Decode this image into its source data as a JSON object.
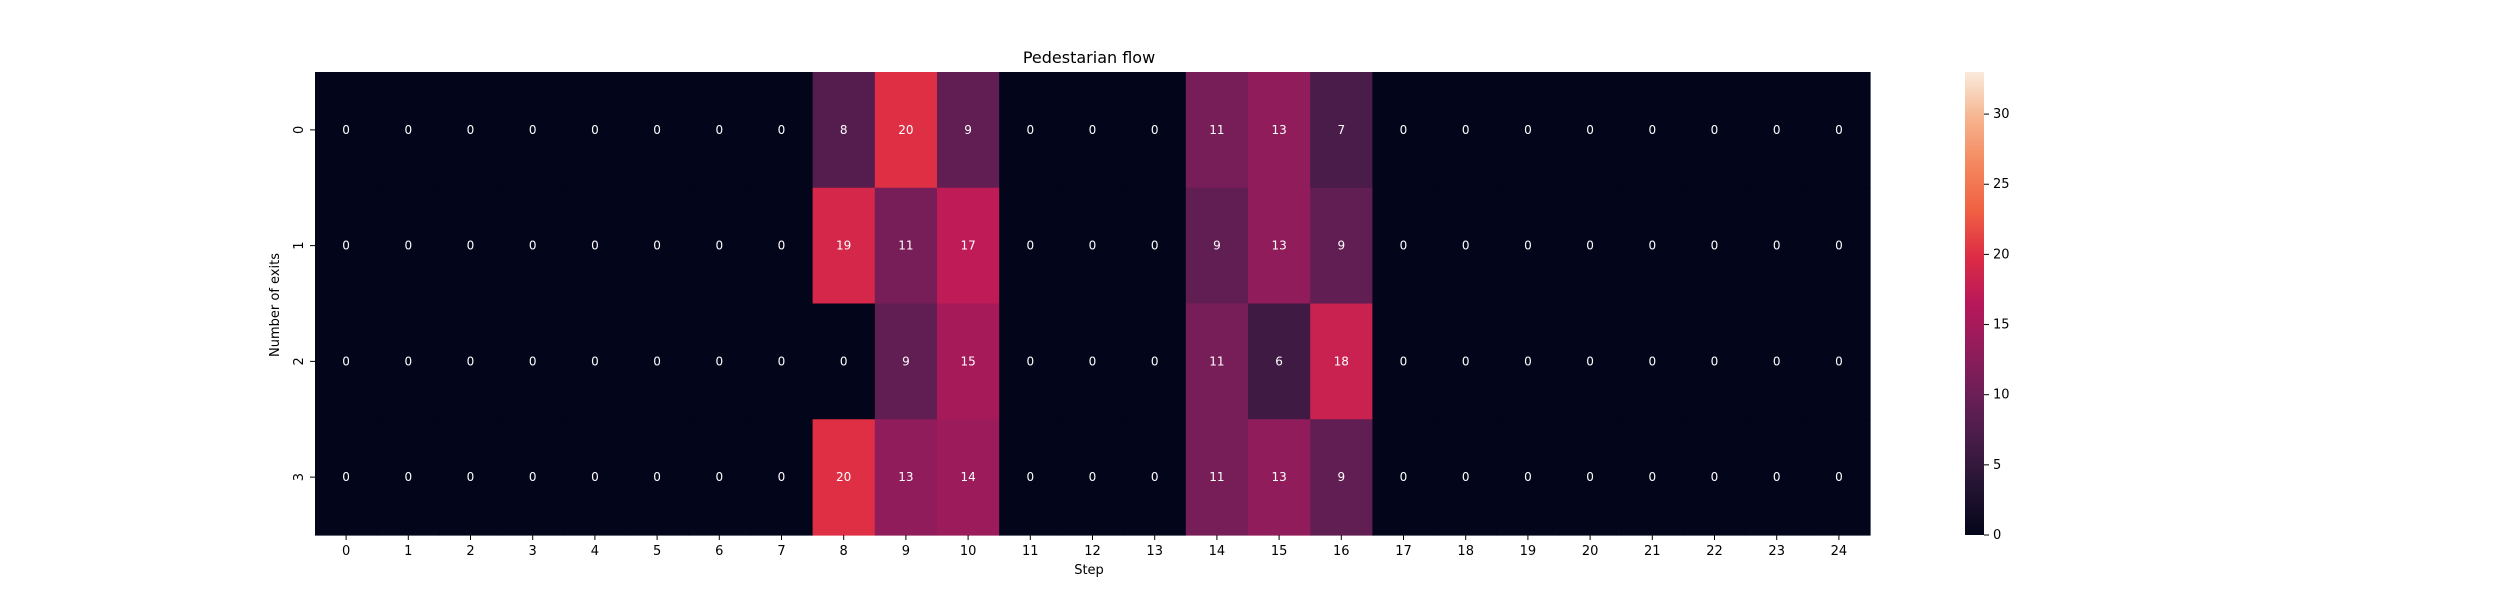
{
  "chart_data": {
    "type": "heatmap",
    "title": "Pedestarian flow",
    "xlabel": "Step",
    "ylabel": "Number of exits",
    "x_categories": [
      "0",
      "1",
      "2",
      "3",
      "4",
      "5",
      "6",
      "7",
      "8",
      "9",
      "10",
      "11",
      "12",
      "13",
      "14",
      "15",
      "16",
      "17",
      "18",
      "19",
      "20",
      "21",
      "22",
      "23",
      "24"
    ],
    "y_categories": [
      "0",
      "1",
      "2",
      "3"
    ],
    "values": [
      [
        0,
        0,
        0,
        0,
        0,
        0,
        0,
        0,
        8,
        20,
        9,
        0,
        0,
        0,
        11,
        13,
        7,
        0,
        0,
        0,
        0,
        0,
        0,
        0,
        0
      ],
      [
        0,
        0,
        0,
        0,
        0,
        0,
        0,
        0,
        19,
        11,
        17,
        0,
        0,
        0,
        9,
        13,
        9,
        0,
        0,
        0,
        0,
        0,
        0,
        0,
        0
      ],
      [
        0,
        0,
        0,
        0,
        0,
        0,
        0,
        0,
        0,
        9,
        15,
        0,
        0,
        0,
        11,
        6,
        18,
        0,
        0,
        0,
        0,
        0,
        0,
        0,
        0
      ],
      [
        0,
        0,
        0,
        0,
        0,
        0,
        0,
        0,
        20,
        13,
        14,
        0,
        0,
        0,
        11,
        13,
        9,
        0,
        0,
        0,
        0,
        0,
        0,
        0,
        0
      ]
    ],
    "colorbar": {
      "vmin": 0,
      "vmax": 33,
      "ticks": [
        0,
        5,
        10,
        15,
        20,
        25,
        30
      ],
      "colormap": "rocket"
    },
    "annotations": true,
    "annotation_color": "#ffffff"
  }
}
